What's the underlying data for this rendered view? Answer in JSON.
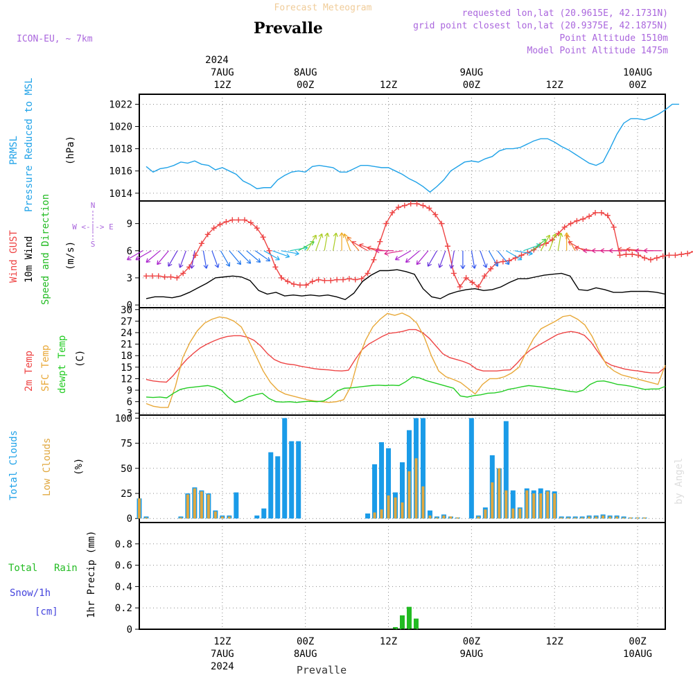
{
  "header": {
    "title_faded": "Forecast Meteogram",
    "station": "Prevalle",
    "model": "ICON-EU, ~ 7km",
    "requested": "requested lon,lat (20.9615E, 42.1731N)",
    "gridpoint": "grid point closest lon,lat (20.9375E, 42.1875N)",
    "altitude": "Point Altitude 1510m",
    "model_altitude": "Model Point Altitude 1475m",
    "footer_station": "Prevalle",
    "credit": "by Angel"
  },
  "colors": {
    "pressure": "#1fa2e8",
    "gust": "#ee4444",
    "wind": "#000000",
    "direction": "#22bb22",
    "temp2m": "#ee4444",
    "sfc": "#e8a838",
    "dewpt": "#22cc22",
    "total_clouds": "#1a9be8",
    "low_clouds": "#e0a840",
    "rain": "#22bb22",
    "snow": "#4444dd",
    "compass": "#aa66dd"
  },
  "time_axis": {
    "top_year": "2024",
    "ticks": [
      {
        "hour": 12,
        "date": "7AUG",
        "time": "12Z",
        "bottom_year": "2024"
      },
      {
        "hour": 24,
        "date": "8AUG",
        "time": "00Z",
        "bottom_year": ""
      },
      {
        "hour": 36,
        "date": "",
        "time": "12Z",
        "bottom_year": ""
      },
      {
        "hour": 48,
        "date": "9AUG",
        "time": "00Z",
        "bottom_year": ""
      },
      {
        "hour": 60,
        "date": "",
        "time": "12Z",
        "bottom_year": ""
      },
      {
        "hour": 72,
        "date": "10AUG",
        "time": "00Z",
        "bottom_year": ""
      }
    ]
  },
  "panel_labels": {
    "pressure": {
      "a": "PRMSL",
      "b": "Pressure Reduced to MSL",
      "unit": "(hPa)"
    },
    "wind": {
      "a": "Wind GUST",
      "b": "10m Wind",
      "c": "Speed and Direction",
      "unit": "(m/s)",
      "compass_w": "W <-|-> E",
      "compass_n": "N",
      "compass_s": "S"
    },
    "temp": {
      "a": "2m Temp",
      "b": "SFC Temp",
      "c": "dewpt Temp",
      "unit": "(C)"
    },
    "clouds": {
      "a": "Total Clouds",
      "b": "Low Clouds",
      "unit": "(%)"
    },
    "precip": {
      "a": "Total",
      "b": "Rain",
      "c": "Snow/1h",
      "d": "[cm]",
      "unit": "1hr Precip (mm)"
    }
  },
  "chart_data": [
    {
      "type": "line",
      "title": "PRMSL Pressure Reduced to MSL",
      "ylabel": "hPa",
      "ylim": [
        1013.3,
        1022.9
      ],
      "yticks": [
        1014,
        1016,
        1018,
        1020,
        1022
      ],
      "x_start_hour": 1,
      "x_step_hours": 1,
      "values": [
        1016.4,
        1015.9,
        1016.2,
        1016.3,
        1016.5,
        1016.8,
        1016.7,
        1016.9,
        1016.6,
        1016.5,
        1016.1,
        1016.3,
        1016.0,
        1015.7,
        1015.1,
        1014.8,
        1014.4,
        1014.5,
        1014.5,
        1015.2,
        1015.6,
        1015.9,
        1016.0,
        1015.9,
        1016.4,
        1016.5,
        1016.4,
        1016.3,
        1015.9,
        1015.9,
        1016.2,
        1016.5,
        1016.5,
        1016.4,
        1016.3,
        1016.3,
        1016.0,
        1015.7,
        1015.3,
        1015.0,
        1014.6,
        1014.1,
        1014.6,
        1015.2,
        1016.0,
        1016.4,
        1016.8,
        1016.9,
        1016.8,
        1017.1,
        1017.3,
        1017.8,
        1018.0,
        1018.0,
        1018.1,
        1018.4,
        1018.7,
        1018.9,
        1018.9,
        1018.6,
        1018.2,
        1017.9,
        1017.5,
        1017.1,
        1016.7,
        1016.5,
        1016.8,
        1018.0,
        1019.3,
        1020.3,
        1020.7,
        1020.7,
        1020.6,
        1020.8,
        1021.1,
        1021.5,
        1022.0,
        1022.0
      ]
    },
    {
      "type": "line",
      "title": "Wind GUST / 10m Wind Speed and Direction",
      "ylabel": "m/s",
      "ylim": [
        -0.3,
        11.5
      ],
      "yticks": [
        0,
        3,
        6,
        9
      ],
      "x_start_hour": 1,
      "x_step_hours": 1,
      "series": [
        {
          "name": "Wind GUST",
          "values": [
            3.2,
            3.2,
            3.2,
            3.1,
            3.1,
            3.0,
            3.5,
            4.2,
            5.5,
            6.8,
            7.8,
            8.5,
            8.9,
            9.2,
            9.4,
            9.4,
            9.4,
            9.1,
            8.5,
            7.5,
            6.0,
            4.2,
            3.0,
            2.6,
            2.3,
            2.2,
            2.2,
            2.6,
            2.8,
            2.7,
            2.7,
            2.8,
            2.8,
            2.9,
            2.8,
            2.9,
            3.5,
            5.0,
            7.0,
            9.0,
            10.2,
            10.8,
            11.0,
            11.2,
            11.2,
            11.0,
            10.7,
            10.0,
            9.0,
            6.5,
            3.5,
            2.0,
            3.0,
            2.5,
            2.0,
            3.2,
            4.0,
            4.7,
            4.8,
            4.9,
            5.2,
            5.5,
            5.8,
            6.1,
            6.6,
            6.8,
            7.2,
            7.9,
            8.6,
            9.0,
            9.3,
            9.5,
            9.8,
            10.2,
            10.2,
            9.9,
            8.6,
            5.5,
            5.6,
            5.6,
            5.5,
            5.2,
            5.0,
            5.2,
            5.4,
            5.5,
            5.5,
            5.6,
            5.7,
            5.9,
            6.1
          ]
        },
        {
          "name": "10m Wind",
          "values": [
            0.7,
            0.9,
            0.9,
            0.8,
            1.0,
            1.4,
            1.9,
            2.4,
            3.0,
            3.1,
            3.2,
            3.1,
            2.7,
            1.6,
            1.2,
            1.4,
            1.0,
            1.1,
            1.0,
            1.1,
            1.0,
            1.1,
            0.9,
            0.6,
            1.3,
            2.6,
            3.3,
            3.8,
            3.8,
            3.9,
            3.7,
            3.4,
            1.8,
            0.9,
            0.7,
            1.2,
            1.5,
            1.7,
            1.8,
            1.6,
            1.7,
            2.0,
            2.5,
            2.9,
            2.9,
            3.1,
            3.3,
            3.4,
            3.5,
            3.2,
            1.7,
            1.6,
            1.9,
            1.7,
            1.4,
            1.4,
            1.5,
            1.5,
            1.5,
            1.4,
            1.2
          ]
        }
      ],
      "wind_direction_deg": [
        300,
        300,
        310,
        320,
        330,
        340,
        350,
        10,
        20,
        30,
        40,
        45,
        50,
        55,
        60,
        70,
        80,
        100,
        120,
        150,
        160,
        170,
        170,
        180,
        200,
        220,
        240,
        250,
        260,
        270,
        280,
        300,
        310,
        320,
        330,
        340,
        350,
        0,
        10,
        20,
        30,
        40,
        60,
        80,
        110,
        130,
        150,
        160,
        170,
        180,
        210,
        240,
        260,
        270,
        270,
        270,
        270,
        265,
        265,
        270,
        270
      ]
    },
    {
      "type": "line",
      "title": "2m Temp / SFC Temp / dewpt Temp",
      "ylabel": "C",
      "ylim": [
        2.5,
        30.5
      ],
      "yticks": [
        3,
        6,
        9,
        12,
        15,
        18,
        21,
        24,
        27,
        30
      ],
      "x_start_hour": 1,
      "x_step_hours": 1,
      "series": [
        {
          "name": "2m Temp",
          "values": [
            11.8,
            11.4,
            11.2,
            11.1,
            12.8,
            15.0,
            17.0,
            18.6,
            20.0,
            21.0,
            21.8,
            22.5,
            23.0,
            23.2,
            23.2,
            22.8,
            22.0,
            20.5,
            18.5,
            17.0,
            16.2,
            15.8,
            15.6,
            15.2,
            14.9,
            14.6,
            14.4,
            14.3,
            14.1,
            14.0,
            14.2,
            17.0,
            19.5,
            21.0,
            22.0,
            23.0,
            23.8,
            24.0,
            24.3,
            24.8,
            24.8,
            24.0,
            22.5,
            20.5,
            18.5,
            17.5,
            17.0,
            16.5,
            15.8,
            14.5,
            14.0,
            14.0,
            14.0,
            14.2,
            14.3,
            16.0,
            18.0,
            19.5,
            20.5,
            21.5,
            22.5,
            23.5,
            24.0,
            24.3,
            24.0,
            23.3,
            21.5,
            19.0,
            16.5,
            15.5,
            15.0,
            14.5,
            14.2,
            14.0,
            13.7,
            13.5,
            13.5,
            15.0
          ]
        },
        {
          "name": "SFC Temp",
          "values": [
            5.5,
            4.8,
            4.5,
            4.5,
            10.0,
            17.5,
            21.5,
            24.5,
            26.5,
            27.5,
            28.1,
            27.8,
            27.0,
            25.5,
            22.0,
            18.0,
            14.0,
            11.0,
            9.0,
            8.0,
            7.5,
            7.0,
            6.5,
            6.2,
            6.0,
            5.8,
            6.0,
            6.5,
            10.0,
            17.0,
            22.0,
            25.5,
            27.5,
            29.0,
            28.5,
            29.1,
            28.2,
            26.5,
            23.0,
            18.0,
            14.0,
            12.5,
            11.8,
            11.0,
            9.5,
            8.0,
            10.5,
            12.0,
            12.0,
            12.5,
            13.5,
            15.0,
            19.0,
            22.5,
            25.0,
            26.0,
            27.0,
            28.2,
            28.5,
            27.5,
            26.0,
            23.0,
            19.0,
            15.5,
            14.0,
            13.0,
            12.5,
            12.0,
            11.5,
            11.0,
            10.5,
            15.5
          ]
        },
        {
          "name": "dewpt Temp",
          "values": [
            7.2,
            7.1,
            7.2,
            7.0,
            8.2,
            9.2,
            9.6,
            9.8,
            10.0,
            10.2,
            9.8,
            9.0,
            7.2,
            5.8,
            6.3,
            7.3,
            7.8,
            8.2,
            6.8,
            6.0,
            5.9,
            6.0,
            5.8,
            6.0,
            6.1,
            6.0,
            6.2,
            7.2,
            8.8,
            9.5,
            9.6,
            9.8,
            10.0,
            10.2,
            10.3,
            10.2,
            10.3,
            10.2,
            11.2,
            12.5,
            12.2,
            11.5,
            11.0,
            10.5,
            10.0,
            9.5,
            7.5,
            7.2,
            7.6,
            7.8,
            8.2,
            8.3,
            8.6,
            9.2,
            9.5,
            9.9,
            10.2,
            10.0,
            9.8,
            9.5,
            9.3,
            9.0,
            8.7,
            8.5,
            9.0,
            10.5,
            11.3,
            11.4,
            11.0,
            10.5,
            10.3,
            10.0,
            9.6,
            9.2,
            9.3,
            9.3,
            10.0
          ]
        }
      ]
    },
    {
      "type": "bar",
      "title": "Total Clouds / Low Clouds",
      "ylabel": "%",
      "ylim": [
        -4,
        103
      ],
      "yticks": [
        0,
        25,
        50,
        75,
        100
      ],
      "x_start_hour": 0,
      "x_step_hours": 1,
      "series": [
        {
          "name": "Total Clouds",
          "values": [
            20,
            2,
            0,
            0,
            0,
            0,
            2,
            25,
            31,
            28,
            25,
            8,
            3,
            3,
            26,
            0,
            0,
            3,
            10,
            66,
            62,
            100,
            77,
            77,
            0,
            0,
            0,
            0,
            0,
            0,
            0,
            0,
            0,
            5,
            54,
            76,
            70,
            26,
            56,
            88,
            100,
            100,
            8,
            2,
            4,
            2,
            1,
            0,
            100,
            3,
            11,
            63,
            50,
            97,
            28,
            11,
            30,
            28,
            30,
            28,
            27,
            2,
            2,
            2,
            2,
            3,
            3,
            4,
            3,
            3,
            2,
            1,
            1,
            1
          ]
        },
        {
          "name": "Low Clouds",
          "values": [
            20,
            1,
            0,
            0,
            0,
            0,
            1,
            24,
            30,
            27,
            24,
            7,
            2,
            2,
            0,
            0,
            0,
            0,
            0,
            0,
            0,
            0,
            0,
            0,
            0,
            0,
            0,
            0,
            0,
            0,
            0,
            0,
            0,
            0,
            6,
            9,
            23,
            21,
            16,
            47,
            60,
            32,
            3,
            1,
            3,
            2,
            1,
            0,
            0,
            2,
            9,
            36,
            50,
            28,
            10,
            10,
            28,
            25,
            25,
            27,
            25,
            1,
            1,
            1,
            1,
            2,
            2,
            3,
            2,
            2,
            1,
            1,
            1,
            1
          ]
        }
      ]
    },
    {
      "type": "bar",
      "title": "Total Rain / Snow 1hr Precip",
      "ylabel": "1hr Precip (mm)",
      "ylim": [
        0,
        1.0
      ],
      "yticks": [
        0,
        0.2,
        0.4,
        0.6,
        0.8
      ],
      "x_start_hour": 0,
      "x_step_hours": 1,
      "series": [
        {
          "name": "Total Rain",
          "values": [
            0,
            0,
            0,
            0,
            0,
            0,
            0,
            0,
            0,
            0,
            0,
            0,
            0,
            0,
            0,
            0,
            0,
            0,
            0,
            0,
            0,
            0,
            0,
            0,
            0,
            0,
            0,
            0,
            0,
            0,
            0,
            0,
            0,
            0,
            0,
            0,
            0,
            0.02,
            0.13,
            0.21,
            0.1,
            0,
            0,
            0,
            0,
            0,
            0,
            0,
            0,
            0,
            0,
            0,
            0,
            0,
            0,
            0,
            0,
            0,
            0,
            0,
            0,
            0,
            0,
            0,
            0,
            0,
            0,
            0,
            0,
            0,
            0,
            0,
            0,
            0,
            0,
            0
          ]
        },
        {
          "name": "Snow/1h",
          "values": []
        }
      ]
    }
  ]
}
